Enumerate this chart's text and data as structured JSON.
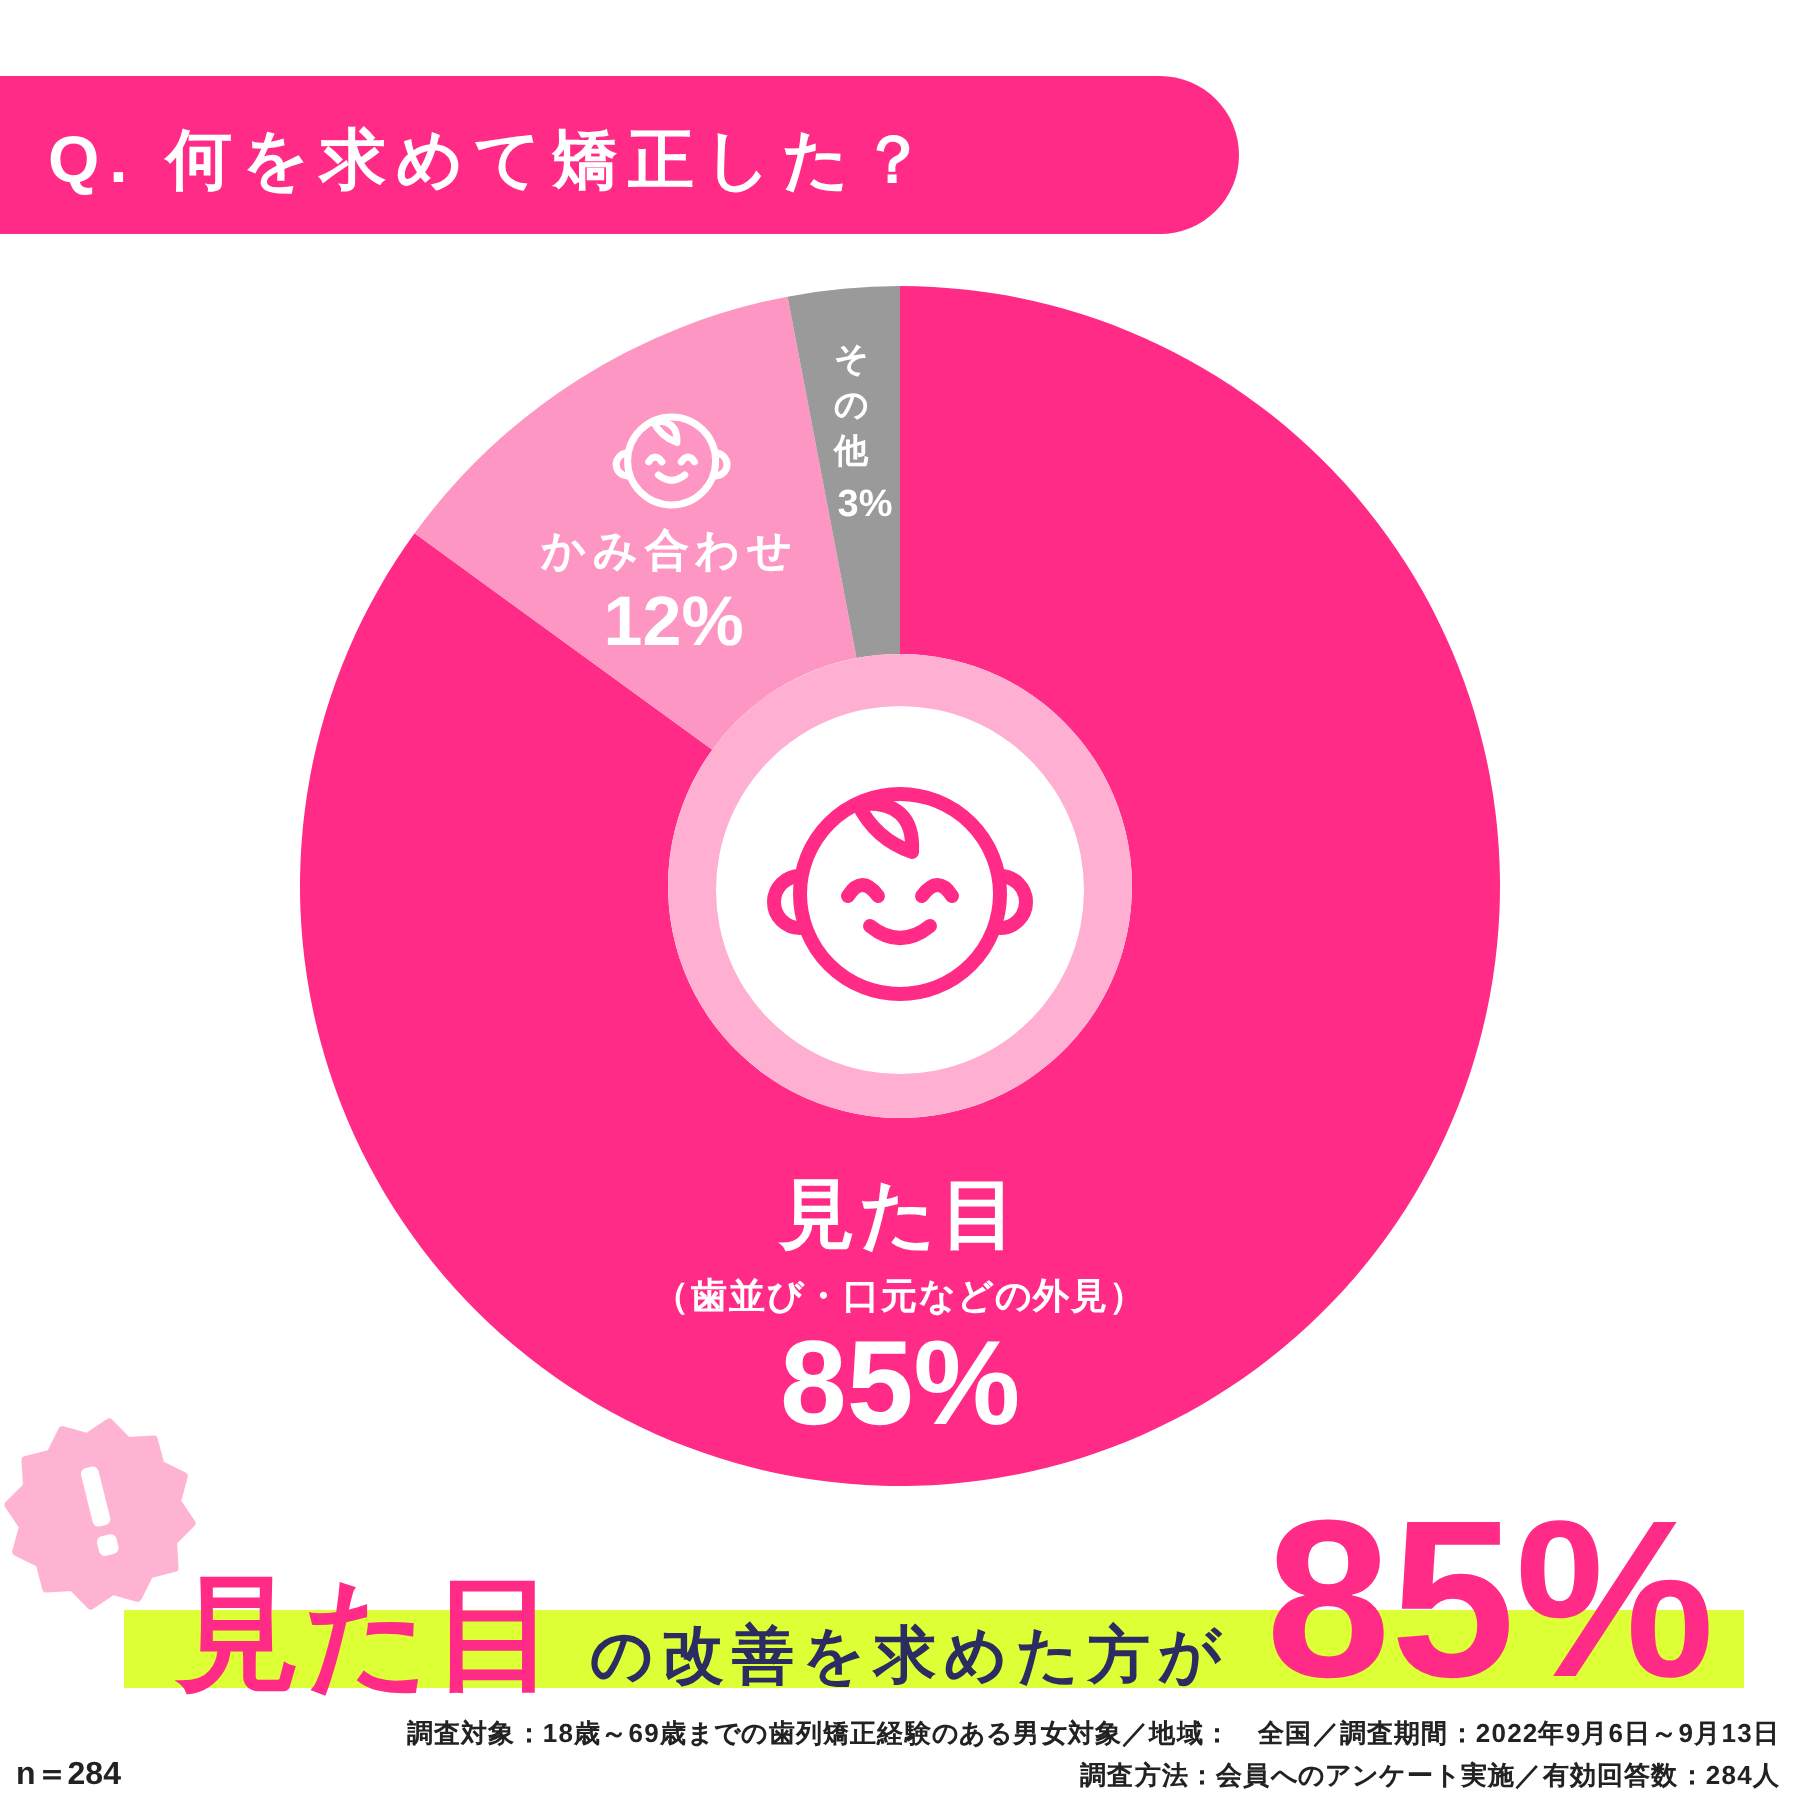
{
  "chart_data": {
    "type": "donut",
    "title": "Q. 何を求めて矯正した？",
    "categories": [
      "見た目（歯並び・口元などの外見）",
      "かみ合わせ",
      "その他"
    ],
    "values": [
      85,
      12,
      3
    ],
    "colors": [
      "#ff2b86",
      "#fd96c2",
      "#9a9a9a"
    ],
    "value_labels": [
      "85%",
      "12%",
      "3%"
    ],
    "annotations": [
      "見た目",
      "の改善を求めた方が",
      "85%",
      "n＝284",
      "調査対象：18歳～69歳までの歯列矯正経験のある男女対象／地域：　全国／調査期間：2022年9月6日～9月13日",
      "調査方法：会員へのアンケート実施／有効回答数：284人"
    ]
  }
}
